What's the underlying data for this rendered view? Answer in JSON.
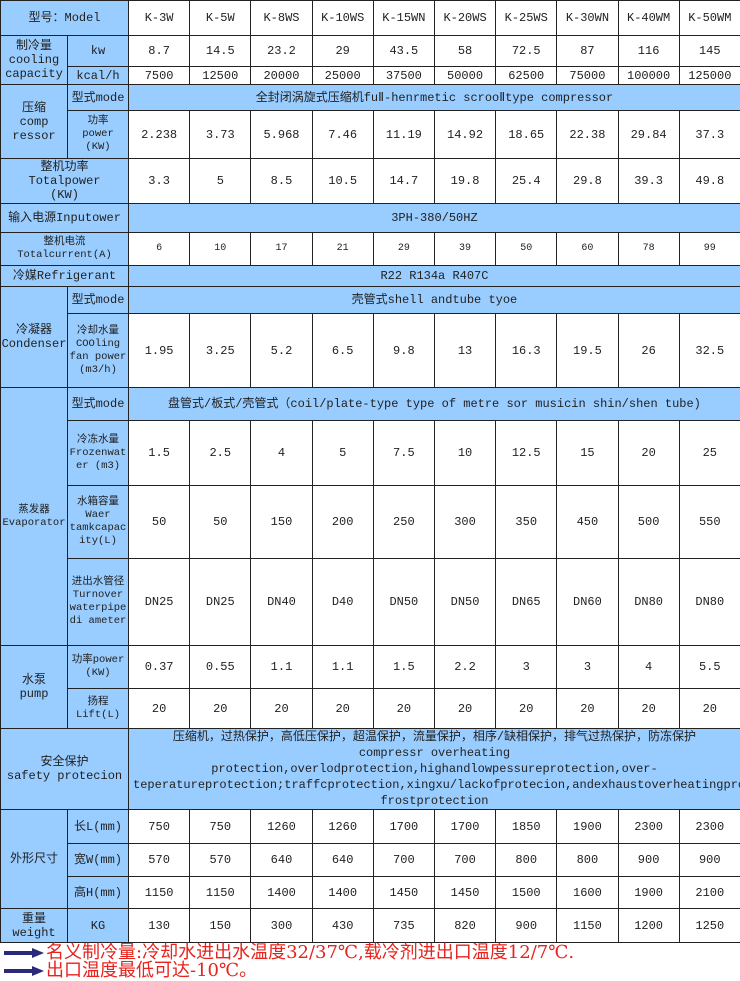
{
  "header": {
    "label": "型号：Model",
    "models": [
      "K-3W",
      "K-5W",
      "K-8WS",
      "K-10WS",
      "K-15WN",
      "K-20WS",
      "K-25WS",
      "K-30WN",
      "K-40WM",
      "K-50WM"
    ]
  },
  "cooling": {
    "label": "制冷量\ncooling\ncapacity",
    "kw": {
      "unit": "kw",
      "values": [
        "8.7",
        "14.5",
        "23.2",
        "29",
        "43.5",
        "58",
        "72.5",
        "87",
        "116",
        "145"
      ]
    },
    "kcal": {
      "unit": "kcal/h",
      "values": [
        "7500",
        "12500",
        "20000",
        "25000",
        "37500",
        "50000",
        "62500",
        "75000",
        "100000",
        "125000"
      ]
    }
  },
  "compressor": {
    "label": "压缩\ncomp\nressor",
    "mode": {
      "unit": "型式mode",
      "value": "全封闭涡旋式压缩机fuⅡ-henrmetic scrooⅡtype compressor"
    },
    "power": {
      "unit": "功率\npower\n(KW)",
      "values": [
        "2.238",
        "3.73",
        "5.968",
        "7.46",
        "11.19",
        "14.92",
        "18.65",
        "22.38",
        "29.84",
        "37.3"
      ]
    }
  },
  "total_power": {
    "label": "整机功率\nTotalpower\n(KW)",
    "values": [
      "3.3",
      "5",
      "8.5",
      "10.5",
      "14.7",
      "19.8",
      "25.4",
      "29.8",
      "39.3",
      "49.8"
    ]
  },
  "input_power": {
    "label": "输入电源Inputower",
    "value": "3PH-380/50HZ"
  },
  "total_current": {
    "label": "整机电流\nTotalcurrent(A)",
    "values": [
      "6",
      "10",
      "17",
      "21",
      "29",
      "39",
      "50",
      "60",
      "78",
      "99"
    ]
  },
  "refrigerant": {
    "label": "冷媒Refrigerant",
    "value": "R22 R134a R407C"
  },
  "condenser": {
    "label": "冷凝器\nCondenser",
    "mode": {
      "unit": "型式mode",
      "value": "壳管式shell andtube tyoe"
    },
    "cooling_water": {
      "unit": "冷却水量\nCOOling\nfan power\n(m3/h)",
      "values": [
        "1.95",
        "3.25",
        "5.2",
        "6.5",
        "9.8",
        "13",
        "16.3",
        "19.5",
        "26",
        "32.5"
      ]
    }
  },
  "evaporator": {
    "label": "蒸发器\nEvaporator",
    "mode": {
      "unit": "型式mode",
      "value": "盘管式/板式/壳管式（coil/plate-type type of metre sor musicin shin/shen tube)"
    },
    "frozen_water": {
      "unit": "冷冻水量\nFrozenwat\ner (m3)",
      "values": [
        "1.5",
        "2.5",
        "4",
        "5",
        "7.5",
        "10",
        "12.5",
        "15",
        "20",
        "25"
      ]
    },
    "tank": {
      "unit": "水箱容量\nWaer\ntamkcapac\nity(L)",
      "values": [
        "50",
        "50",
        "150",
        "200",
        "250",
        "300",
        "350",
        "450",
        "500",
        "550"
      ]
    },
    "pipe": {
      "unit": "进出水管径\nTurnover\nwaterpipe\ndi ameter",
      "values": [
        "DN25",
        "DN25",
        "DN40",
        "D40",
        "DN50",
        "DN50",
        "DN65",
        "DN60",
        "DN80",
        "DN80"
      ]
    }
  },
  "pump": {
    "label": "水泵\npump",
    "power": {
      "unit": "功率power\n(KW)",
      "values": [
        "0.37",
        "0.55",
        "1.1",
        "1.1",
        "1.5",
        "2.2",
        "3",
        "3",
        "4",
        "5.5"
      ]
    },
    "lift": {
      "unit": "扬程\nLift(L)",
      "values": [
        "20",
        "20",
        "20",
        "20",
        "20",
        "20",
        "20",
        "20",
        "20",
        "20"
      ]
    }
  },
  "safety": {
    "label": "安全保护\nsafety protecion",
    "value": "压缩机，过热保护，高低压保护，超温保护，流量保护，相序/缺相保护，排气过热保护，防冻保护\ncompressr overheating protection,overlodprotection,highandlowpessureprotection,over-teperatureprotection;traffcprotection,xingxu/lackofprotecion,andexhaustoverheatingproteion,     frostprotection"
  },
  "dimensions": {
    "label": "外形尺寸",
    "length": {
      "unit": "长L(mm)",
      "values": [
        "750",
        "750",
        "1260",
        "1260",
        "1700",
        "1700",
        "1850",
        "1900",
        "2300",
        "2300"
      ]
    },
    "width": {
      "unit": "宽W(mm)",
      "values": [
        "570",
        "570",
        "640",
        "640",
        "700",
        "700",
        "800",
        "800",
        "900",
        "900"
      ]
    },
    "height": {
      "unit": "高H(mm)",
      "values": [
        "1150",
        "1150",
        "1400",
        "1400",
        "1450",
        "1450",
        "1500",
        "1600",
        "1900",
        "2100"
      ]
    }
  },
  "weight": {
    "label": "重量\nweight",
    "unit": "KG",
    "values": [
      "130",
      "150",
      "300",
      "430",
      "735",
      "820",
      "900",
      "1150",
      "1200",
      "1250"
    ]
  },
  "notes": [
    "名义制冷量:冷却水进出水温度32/37℃,载冷剂进出口温度12/7℃.",
    "出口温度最低可达-10℃。"
  ],
  "colors": {
    "header_fill": "#99ccff",
    "note_text": "#e8221c",
    "arrow": "#2a2a7a"
  }
}
